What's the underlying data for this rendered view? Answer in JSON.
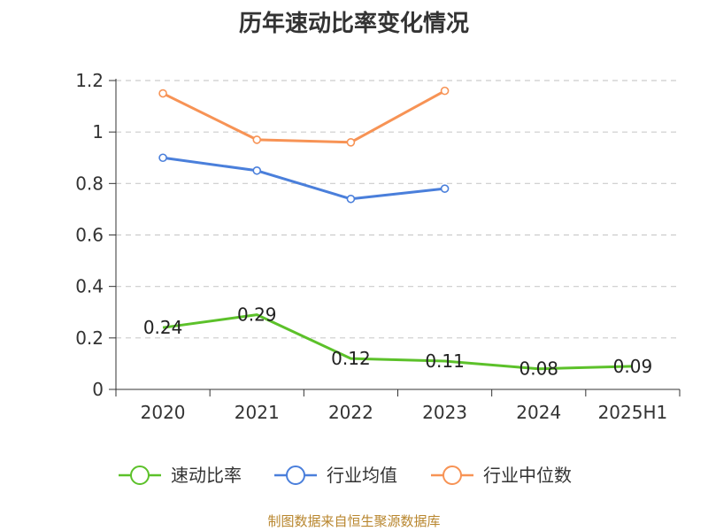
{
  "chart_data": {
    "type": "line",
    "title": "历年速动比率变化情况",
    "categories": [
      "2020",
      "2021",
      "2022",
      "2023",
      "2024",
      "2025H1"
    ],
    "ylim": [
      0,
      1.2
    ],
    "yticks": [
      0,
      0.2,
      0.4,
      0.6,
      0.8,
      1,
      1.2
    ],
    "ytick_labels": [
      "0",
      "0.2",
      "0.4",
      "0.6",
      "0.8",
      "1",
      "1.2"
    ],
    "grid": "horizontal dashed",
    "legend_position": "bottom",
    "series": [
      {
        "name": "速动比率",
        "color": "#5cc12a",
        "values": [
          0.24,
          0.29,
          0.12,
          0.11,
          0.08,
          0.09
        ],
        "labels": [
          "0.24",
          "0.29",
          "0.12",
          "0.11",
          "0.08",
          "0.09"
        ],
        "markers": false
      },
      {
        "name": "行业均值",
        "color": "#4a7fdb",
        "values": [
          0.9,
          0.85,
          0.74,
          0.78,
          null,
          null
        ],
        "markers": true
      },
      {
        "name": "行业中位数",
        "color": "#f79355",
        "values": [
          1.15,
          0.97,
          0.96,
          1.16,
          null,
          null
        ],
        "markers": true
      }
    ]
  },
  "source": "制图数据来自恒生聚源数据库"
}
